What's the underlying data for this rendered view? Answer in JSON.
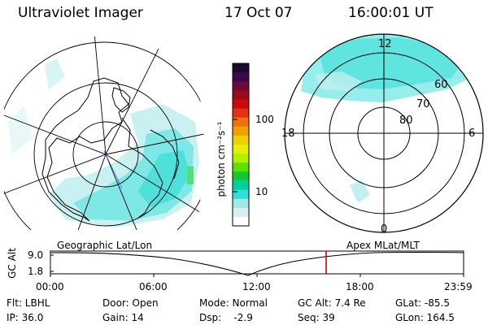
{
  "header": {
    "instrument": "Ultraviolet Imager",
    "date": "17 Oct 07",
    "time": "16:00:01 UT"
  },
  "colorbar": {
    "unit_label": "photon cm⁻²s⁻¹",
    "ticks": [
      "100",
      "10"
    ],
    "colors": [
      "#1a0a2e",
      "#3a0a4a",
      "#6a0a3a",
      "#9a0a1a",
      "#c80a0a",
      "#e63010",
      "#f07010",
      "#f0a000",
      "#f0d000",
      "#e8f000",
      "#b0f000",
      "#60e000",
      "#10c830",
      "#00d0a0",
      "#30e0d8",
      "#a0e8e8",
      "#d8f0f0",
      "#ffffff"
    ]
  },
  "polar_plot": {
    "mlt_labels": [
      "12",
      "18",
      "6",
      "0"
    ],
    "mlat_labels": [
      "60",
      "70",
      "80"
    ]
  },
  "footer_strip": {
    "left_title": "Geographic Lat/Lon",
    "right_title": "Apex MLat/MLT",
    "y_axis_label": "GC Alt",
    "y_ticks": [
      "9.0",
      "1.8"
    ],
    "x_ticks": [
      "00:00",
      "06:00",
      "12:00",
      "18:00",
      "23:59"
    ],
    "marker_time": "16:00",
    "marker_color": "#cc0000"
  },
  "info": {
    "row1": [
      "Flt: LBHL",
      "Door: Open",
      "Mode: Normal",
      "GC Alt: 7.4 Re",
      "GLat: -85.5"
    ],
    "row2": [
      "IP: 36.0",
      "Gain: 14",
      "Dsp:    -2.9",
      "Seq: 39",
      "GLon: 164.5"
    ]
  }
}
